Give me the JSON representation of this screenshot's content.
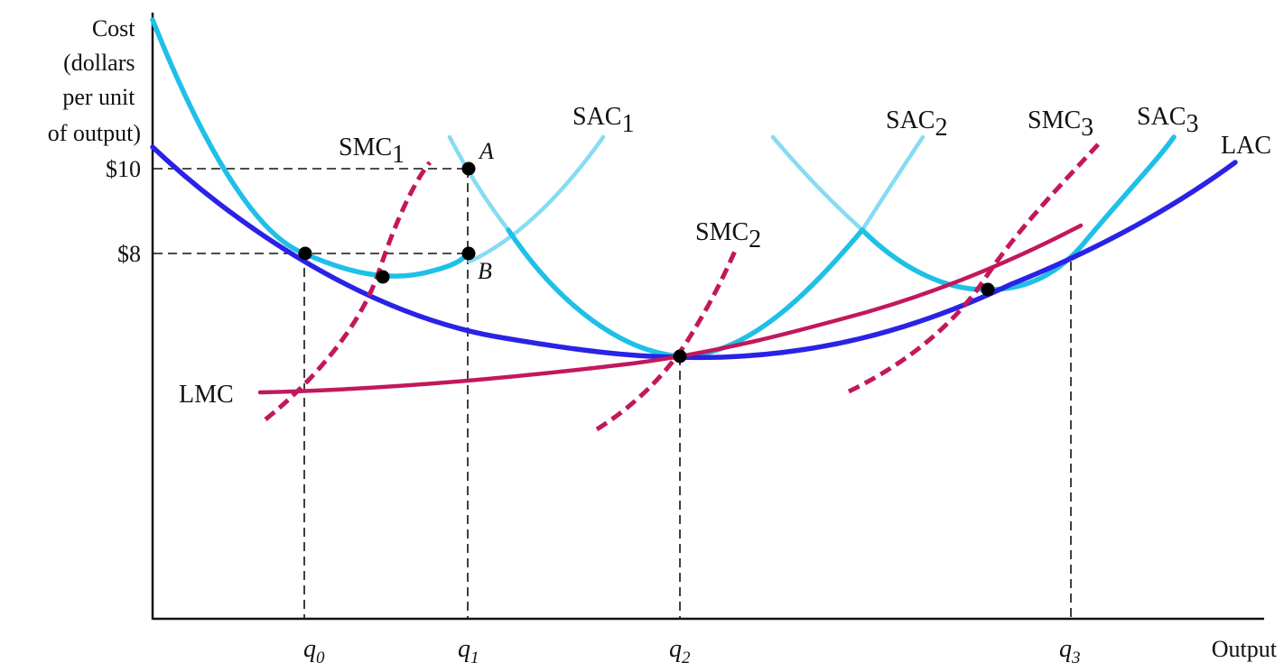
{
  "axes": {
    "y_title_lines": [
      "Cost",
      "(dollars",
      "per unit",
      "of output)"
    ],
    "x_title": "Output",
    "y_ticks": [
      "$10",
      "$8"
    ]
  },
  "curves": {
    "lac": "LAC",
    "lmc": "LMC",
    "sac1": {
      "base": "SAC",
      "sub": "1"
    },
    "sac2": {
      "base": "SAC",
      "sub": "2"
    },
    "sac3": {
      "base": "SAC",
      "sub": "3"
    },
    "smc1": {
      "base": "SMC",
      "sub": "1"
    },
    "smc2": {
      "base": "SMC",
      "sub": "2"
    },
    "smc3": {
      "base": "SMC",
      "sub": "3"
    }
  },
  "points": {
    "a": "A",
    "b": "B"
  },
  "x_ticks": [
    {
      "base": "q",
      "sub": "0"
    },
    {
      "base": "q",
      "sub": "1"
    },
    {
      "base": "q",
      "sub": "2"
    },
    {
      "base": "q",
      "sub": "3"
    }
  ],
  "colors": {
    "lac": "#2a22e6",
    "sac": "#1ec0e8",
    "sac_light": "#86dcf2",
    "smc": "#c2185b",
    "lmc": "#c2185b",
    "axis": "#111111",
    "dot": "#000000"
  }
}
